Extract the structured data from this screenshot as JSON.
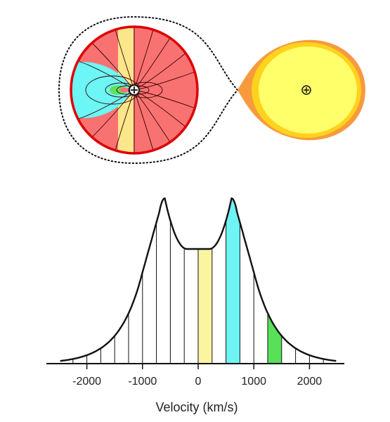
{
  "colors": {
    "disc": "#f87272",
    "disc_rim": "#dd0000",
    "cyan": "#6cf6f6",
    "yellow": "#fbe68c",
    "green": "#60e060",
    "star_outer": "#f79a3e",
    "star_mid": "#ffd21e",
    "star_core": "#ffff6a",
    "line": "#111111"
  },
  "diagram": {
    "white_dwarf_icon": "circle-plus-icon",
    "donor_star_icon": "circle-plus-icon",
    "roche_lobe_style": "dotted"
  },
  "chart_data": {
    "type": "line",
    "xlabel": "Velocity (km/s)",
    "xlim": [
      -2250,
      2250
    ],
    "xticks": [
      -2000,
      -1000,
      0,
      1000,
      2000
    ],
    "xtick_labels": [
      "-2000",
      "-1000",
      "0",
      "1000",
      "2000"
    ],
    "profile": "double-peaked",
    "peaks_kms": [
      -600,
      600
    ],
    "slice_width_kms": 250,
    "highlighted_slices": [
      {
        "range_kms": [
          0,
          250
        ],
        "color": "#fbf5a0"
      },
      {
        "range_kms": [
          500,
          750
        ],
        "color": "#6ef4f4"
      },
      {
        "range_kms": [
          1250,
          1500
        ],
        "color": "#58e058"
      }
    ]
  }
}
